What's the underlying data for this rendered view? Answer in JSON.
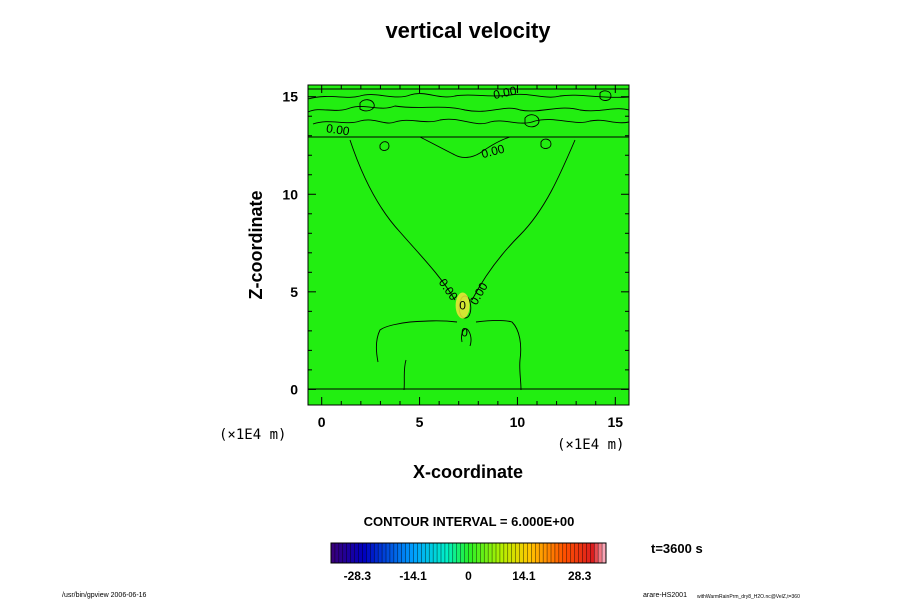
{
  "chart_data": {
    "type": "heatmap",
    "title": "vertical velocity",
    "xlabel": "X-coordinate",
    "ylabel": "Z-coordinate",
    "xunit": "(×1E4 m)",
    "zunit": "(×1E4 m)",
    "xlim": [
      -0.7,
      15.7
    ],
    "ylim": [
      -0.8,
      15.6
    ],
    "xticks": [
      0,
      5,
      10,
      15
    ],
    "yticks": [
      0,
      5,
      10,
      15
    ],
    "contour_labels": [
      {
        "text": "0.00",
        "x": 9.4,
        "z": 15.0
      },
      {
        "text": "0.00",
        "x": 0.8,
        "z": 13.1
      },
      {
        "text": "0.00",
        "x": 8.8,
        "z": 12.0
      },
      {
        "text": "0.00",
        "x": 6.3,
        "z": 5.0
      },
      {
        "text": "0.00",
        "x": 8.2,
        "z": 4.8
      },
      {
        "text": "0",
        "x": 7.2,
        "z": 4.1
      },
      {
        "text": "0",
        "x": 7.3,
        "z": 2.7
      }
    ],
    "contour_interval_text": "CONTOUR INTERVAL = 6.000E+00",
    "time_label": "t=3600 s",
    "colorbar": {
      "min": -35,
      "max": 35,
      "tick_values": [
        -28.3,
        -14.1,
        0,
        14.1,
        28.3
      ],
      "tick_labels": [
        "-28.3",
        "-14.1",
        "0",
        "14.1",
        "28.3"
      ]
    },
    "footer_left": "/usr/bin/gpview 2006-06-16",
    "footer_right_main": "arare-HS2001",
    "footer_right_small": "withWarmRainPrm_dry8_H2O.nc@VelZ,t=360"
  },
  "colors": {
    "field": "#22ee11",
    "line": "#000000",
    "peak": "#f2e43a"
  }
}
